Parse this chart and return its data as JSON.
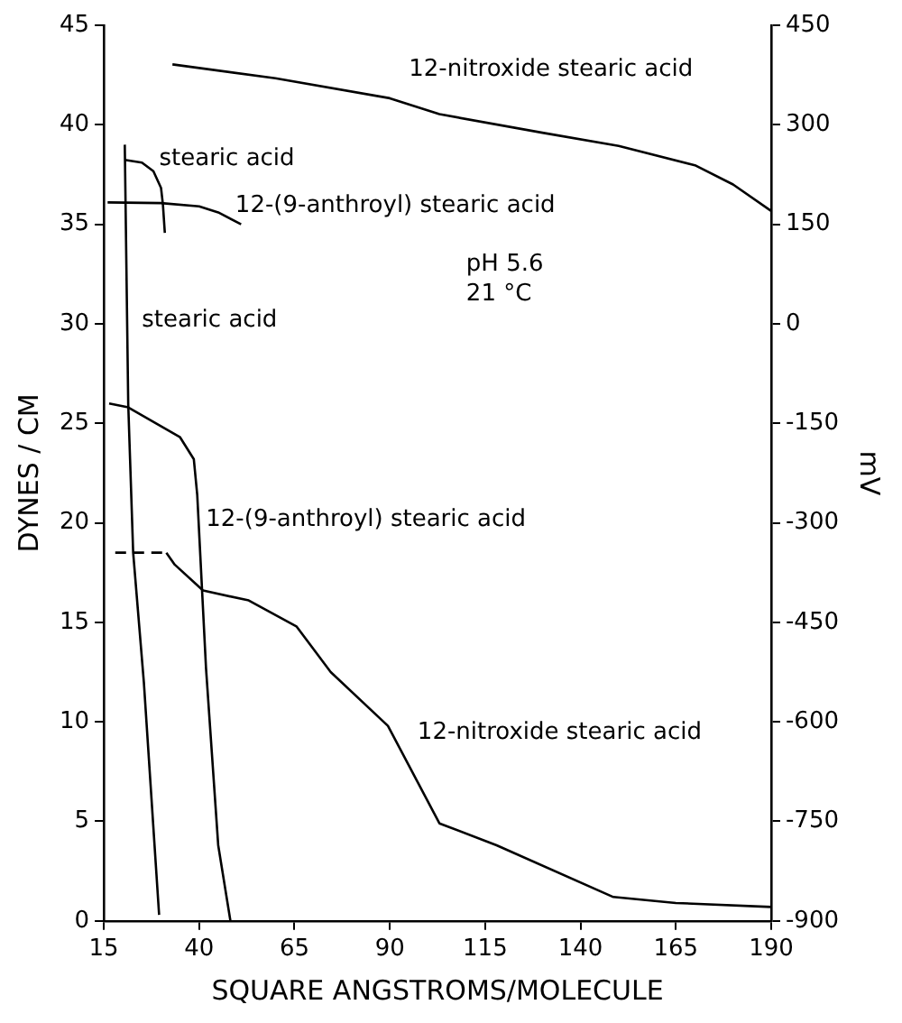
{
  "chart_data": {
    "type": "line",
    "xlabel": "SQUARE ANGSTROMS/MOLECULE",
    "ylabel": "DYNES / CM",
    "y2label": "mV",
    "xlim": [
      15,
      190
    ],
    "xticks": [
      15,
      40,
      65,
      90,
      115,
      140,
      165,
      190
    ],
    "ylim": [
      0,
      45
    ],
    "yticks": [
      0,
      5,
      10,
      15,
      20,
      25,
      30,
      35,
      40,
      45
    ],
    "y2lim": [
      -900,
      450
    ],
    "y2ticks": [
      -900,
      -750,
      -600,
      -450,
      -300,
      -150,
      0,
      150,
      300,
      450
    ],
    "marker": "none",
    "annotations": [
      "pH 5.6",
      "21 °C"
    ],
    "series": [
      {
        "name": "12-nitroxide stearic acid",
        "color": "#000000",
        "axis": "y2",
        "x": [
          33,
          60,
          90,
          103,
          130,
          150,
          170,
          180,
          190
        ],
        "values": [
          391,
          370,
          340,
          316,
          288,
          268,
          239,
          210,
          170
        ]
      },
      {
        "name": "stearic acid",
        "color": "#000000",
        "axis": "y2",
        "x": [
          20.5,
          25,
          28,
          30,
          30.5,
          31
        ],
        "values": [
          247,
          243,
          230,
          205,
          180,
          137
        ]
      },
      {
        "name": "12-(9-anthroyl) stearic acid",
        "color": "#000000",
        "axis": "y2",
        "x": [
          16,
          30,
          40,
          45,
          51
        ],
        "values": [
          183,
          182,
          177,
          168,
          150
        ]
      },
      {
        "name": "stearic acid",
        "color": "#000000",
        "x": [
          20.5,
          21.4,
          22.7,
          25.5,
          29.5
        ],
        "values": [
          39,
          26,
          18.5,
          12,
          0.3
        ]
      },
      {
        "name": "12-(9-anthroyl) stearic acid",
        "color": "#000000",
        "x": [
          16.4,
          21.4,
          35,
          38.6,
          39.5,
          41.8,
          45,
          48.2
        ],
        "values": [
          26,
          25.8,
          24.3,
          23.2,
          21.4,
          12.7,
          3.8,
          0
        ]
      },
      {
        "name": "12-nitroxide stearic acid",
        "color": "#000000",
        "x": [
          31.4,
          33.6,
          41,
          53,
          65.5,
          74.5,
          89.5,
          103,
          118,
          148.6,
          165,
          190
        ],
        "values": [
          18.5,
          17.9,
          16.6,
          16.1,
          14.8,
          12.5,
          9.8,
          4.9,
          3.8,
          1.2,
          0.9,
          0.7
        ]
      },
      {
        "color": "#000000",
        "line_style": "dashed",
        "x": [
          18,
          31.4
        ],
        "values": [
          18.5,
          18.5
        ]
      }
    ]
  }
}
